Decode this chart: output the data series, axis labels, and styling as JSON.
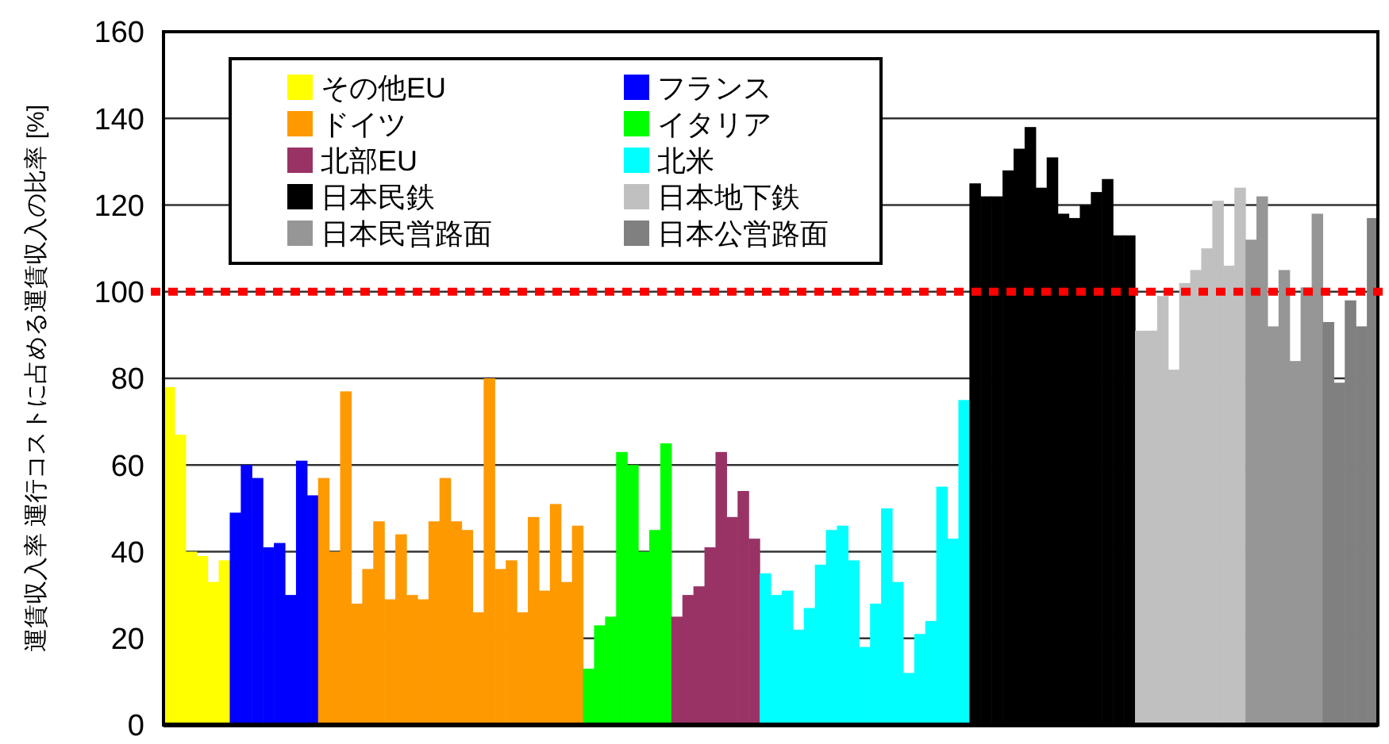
{
  "chart_data": {
    "type": "bar",
    "ylabel": "運賃収入率 運行コストに占める運賃収入の比率 [%]",
    "ylim": [
      0,
      160
    ],
    "yticks": [
      0,
      20,
      40,
      60,
      80,
      100,
      120,
      140,
      160
    ],
    "grid": "y",
    "legend": "top left",
    "tick_labels": "y",
    "categories": [
      null,
      null,
      null,
      null,
      null,
      null,
      null,
      null,
      null,
      null,
      null,
      null,
      null,
      null,
      null,
      null,
      null,
      null,
      null,
      null,
      null,
      null,
      null,
      null,
      null,
      null,
      null,
      null,
      null,
      null,
      null,
      null,
      null,
      null,
      null,
      null,
      null,
      null,
      null,
      null,
      null,
      null,
      null,
      null,
      null,
      null,
      null,
      null,
      null,
      null,
      null,
      null,
      null,
      null,
      null,
      null,
      null,
      null,
      null,
      null,
      null,
      null,
      null,
      null,
      null,
      null,
      null,
      null,
      null,
      null,
      null,
      null,
      null,
      null,
      null,
      null,
      null,
      null,
      null,
      null,
      null,
      null,
      null,
      null,
      null,
      null,
      null,
      null,
      null,
      null,
      null,
      null,
      null,
      null,
      null,
      null,
      null,
      null,
      null,
      null,
      null,
      null,
      null,
      null,
      null,
      null,
      null,
      null,
      null,
      null
    ],
    "ref_lines": [
      {
        "axis": "y",
        "value": 100,
        "color": "#ff0000",
        "line_style": "dotted"
      }
    ],
    "series": [
      {
        "name": "その他EU",
        "color": "#ffff00",
        "values": [
          78,
          67,
          40,
          39,
          33,
          38,
          null,
          null,
          null,
          null,
          null,
          null,
          null,
          null,
          null,
          null,
          null,
          null,
          null,
          null,
          null,
          null,
          null,
          null,
          null,
          null,
          null,
          null,
          null,
          null,
          null,
          null,
          null,
          null,
          null,
          null,
          null,
          null,
          null,
          null,
          null,
          null,
          null,
          null,
          null,
          null,
          null,
          null,
          null,
          null,
          null,
          null,
          null,
          null,
          null,
          null,
          null,
          null,
          null,
          null,
          null,
          null,
          null,
          null,
          null,
          null,
          null,
          null,
          null,
          null,
          null,
          null,
          null,
          null,
          null,
          null,
          null,
          null,
          null,
          null,
          null,
          null,
          null,
          null,
          null,
          null,
          null,
          null,
          null,
          null,
          null,
          null,
          null,
          null,
          null,
          null,
          null,
          null,
          null,
          null,
          null,
          null,
          null,
          null,
          null,
          null,
          null,
          null,
          null,
          null
        ]
      },
      {
        "name": "フランス",
        "color": "#0000ff",
        "values": [
          null,
          null,
          null,
          null,
          null,
          null,
          49,
          60,
          57,
          41,
          42,
          30,
          61,
          53,
          null,
          null,
          null,
          null,
          null,
          null,
          null,
          null,
          null,
          null,
          null,
          null,
          null,
          null,
          null,
          null,
          null,
          null,
          null,
          null,
          null,
          null,
          null,
          null,
          null,
          null,
          null,
          null,
          null,
          null,
          null,
          null,
          null,
          null,
          null,
          null,
          null,
          null,
          null,
          null,
          null,
          null,
          null,
          null,
          null,
          null,
          null,
          null,
          null,
          null,
          null,
          null,
          null,
          null,
          null,
          null,
          null,
          null,
          null,
          null,
          null,
          null,
          null,
          null,
          null,
          null,
          null,
          null,
          null,
          null,
          null,
          null,
          null,
          null,
          null,
          null,
          null,
          null,
          null,
          null,
          null,
          null,
          null,
          null,
          null,
          null,
          null,
          null,
          null,
          null,
          null,
          null,
          null,
          null,
          null,
          null
        ]
      },
      {
        "name": "ドイツ",
        "color": "#ff9900",
        "values": [
          null,
          null,
          null,
          null,
          null,
          null,
          null,
          null,
          null,
          null,
          null,
          null,
          null,
          null,
          57,
          40,
          77,
          28,
          36,
          47,
          29,
          44,
          30,
          29,
          47,
          57,
          47,
          45,
          26,
          80,
          36,
          38,
          26,
          48,
          31,
          51,
          33,
          46,
          null,
          null,
          null,
          null,
          null,
          null,
          null,
          null,
          null,
          null,
          null,
          null,
          null,
          null,
          null,
          null,
          null,
          null,
          null,
          null,
          null,
          null,
          null,
          null,
          null,
          null,
          null,
          null,
          null,
          null,
          null,
          null,
          null,
          null,
          null,
          null,
          null,
          null,
          null,
          null,
          null,
          null,
          null,
          null,
          null,
          null,
          null,
          null,
          null,
          null,
          null,
          null,
          null,
          null,
          null,
          null,
          null,
          null,
          null,
          null,
          null,
          null,
          null,
          null,
          null,
          null,
          null,
          null,
          null,
          null,
          null,
          null
        ]
      },
      {
        "name": "イタリア",
        "color": "#00ff00",
        "values": [
          null,
          null,
          null,
          null,
          null,
          null,
          null,
          null,
          null,
          null,
          null,
          null,
          null,
          null,
          null,
          null,
          null,
          null,
          null,
          null,
          null,
          null,
          null,
          null,
          null,
          null,
          null,
          null,
          null,
          null,
          null,
          null,
          null,
          null,
          null,
          null,
          null,
          null,
          13,
          23,
          25,
          63,
          60,
          40,
          45,
          65,
          null,
          null,
          null,
          null,
          null,
          null,
          null,
          null,
          null,
          null,
          null,
          null,
          null,
          null,
          null,
          null,
          null,
          null,
          null,
          null,
          null,
          null,
          null,
          null,
          null,
          null,
          null,
          null,
          null,
          null,
          null,
          null,
          null,
          null,
          null,
          null,
          null,
          null,
          null,
          null,
          null,
          null,
          null,
          null,
          null,
          null,
          null,
          null,
          null,
          null,
          null,
          null,
          null,
          null,
          null,
          null,
          null,
          null,
          null,
          null,
          null,
          null,
          null,
          null
        ]
      },
      {
        "name": "北部EU",
        "color": "#993366",
        "values": [
          null,
          null,
          null,
          null,
          null,
          null,
          null,
          null,
          null,
          null,
          null,
          null,
          null,
          null,
          null,
          null,
          null,
          null,
          null,
          null,
          null,
          null,
          null,
          null,
          null,
          null,
          null,
          null,
          null,
          null,
          null,
          null,
          null,
          null,
          null,
          null,
          null,
          null,
          null,
          null,
          null,
          null,
          null,
          null,
          null,
          null,
          25,
          30,
          32,
          41,
          63,
          48,
          54,
          43,
          null,
          null,
          null,
          null,
          null,
          null,
          null,
          null,
          null,
          null,
          null,
          null,
          null,
          null,
          null,
          null,
          null,
          null,
          null,
          null,
          null,
          null,
          null,
          null,
          null,
          null,
          null,
          null,
          null,
          null,
          null,
          null,
          null,
          null,
          null,
          null,
          null,
          null,
          null,
          null,
          null,
          null,
          null,
          null,
          null,
          null,
          null,
          null,
          null,
          null,
          null,
          null,
          null,
          null,
          null,
          null
        ]
      },
      {
        "name": "北米",
        "color": "#00ffff",
        "values": [
          null,
          null,
          null,
          null,
          null,
          null,
          null,
          null,
          null,
          null,
          null,
          null,
          null,
          null,
          null,
          null,
          null,
          null,
          null,
          null,
          null,
          null,
          null,
          null,
          null,
          null,
          null,
          null,
          null,
          null,
          null,
          null,
          null,
          null,
          null,
          null,
          null,
          null,
          null,
          null,
          null,
          null,
          null,
          null,
          null,
          null,
          null,
          null,
          null,
          null,
          null,
          null,
          null,
          null,
          35,
          30,
          31,
          22,
          27,
          37,
          45,
          46,
          38,
          18,
          28,
          50,
          33,
          12,
          21,
          24,
          55,
          43,
          75,
          null,
          null,
          null,
          null,
          null,
          null,
          null,
          null,
          null,
          null,
          null,
          null,
          null,
          null,
          null,
          null,
          null,
          null,
          null,
          null,
          null,
          null,
          null,
          null,
          null,
          null,
          null,
          null,
          null,
          null,
          null,
          null,
          null,
          null,
          null,
          null,
          null
        ]
      },
      {
        "name": "日本民鉄",
        "color": "#000000",
        "values": [
          null,
          null,
          null,
          null,
          null,
          null,
          null,
          null,
          null,
          null,
          null,
          null,
          null,
          null,
          null,
          null,
          null,
          null,
          null,
          null,
          null,
          null,
          null,
          null,
          null,
          null,
          null,
          null,
          null,
          null,
          null,
          null,
          null,
          null,
          null,
          null,
          null,
          null,
          null,
          null,
          null,
          null,
          null,
          null,
          null,
          null,
          null,
          null,
          null,
          null,
          null,
          null,
          null,
          null,
          null,
          null,
          null,
          null,
          null,
          null,
          null,
          null,
          null,
          null,
          null,
          null,
          null,
          null,
          null,
          null,
          null,
          null,
          null,
          125,
          122,
          122,
          128,
          133,
          138,
          124,
          131,
          118,
          117,
          120,
          123,
          126,
          113,
          113,
          null,
          null,
          null,
          null,
          null,
          null,
          null,
          null,
          null,
          null,
          null,
          null,
          null,
          null,
          null,
          null,
          null,
          null,
          null,
          null,
          null,
          null
        ]
      },
      {
        "name": "日本地下鉄",
        "color": "#c0c0c0",
        "values": [
          null,
          null,
          null,
          null,
          null,
          null,
          null,
          null,
          null,
          null,
          null,
          null,
          null,
          null,
          null,
          null,
          null,
          null,
          null,
          null,
          null,
          null,
          null,
          null,
          null,
          null,
          null,
          null,
          null,
          null,
          null,
          null,
          null,
          null,
          null,
          null,
          null,
          null,
          null,
          null,
          null,
          null,
          null,
          null,
          null,
          null,
          null,
          null,
          null,
          null,
          null,
          null,
          null,
          null,
          null,
          null,
          null,
          null,
          null,
          null,
          null,
          null,
          null,
          null,
          null,
          null,
          null,
          null,
          null,
          null,
          null,
          null,
          null,
          null,
          null,
          null,
          null,
          null,
          null,
          null,
          null,
          null,
          null,
          null,
          null,
          null,
          null,
          null,
          91,
          91,
          99,
          82,
          102,
          105,
          110,
          121,
          106,
          124,
          null,
          null,
          null,
          null,
          null,
          null,
          null,
          null,
          null,
          null,
          null,
          null
        ]
      },
      {
        "name": "日本民営路面",
        "color": "#969696",
        "values": [
          null,
          null,
          null,
          null,
          null,
          null,
          null,
          null,
          null,
          null,
          null,
          null,
          null,
          null,
          null,
          null,
          null,
          null,
          null,
          null,
          null,
          null,
          null,
          null,
          null,
          null,
          null,
          null,
          null,
          null,
          null,
          null,
          null,
          null,
          null,
          null,
          null,
          null,
          null,
          null,
          null,
          null,
          null,
          null,
          null,
          null,
          null,
          null,
          null,
          null,
          null,
          null,
          null,
          null,
          null,
          null,
          null,
          null,
          null,
          null,
          null,
          null,
          null,
          null,
          null,
          null,
          null,
          null,
          null,
          null,
          null,
          null,
          null,
          null,
          null,
          null,
          null,
          null,
          null,
          null,
          null,
          null,
          null,
          null,
          null,
          null,
          null,
          null,
          null,
          null,
          null,
          null,
          null,
          null,
          null,
          null,
          null,
          null,
          112,
          122,
          92,
          105,
          84,
          101,
          118,
          null,
          null,
          null,
          null,
          null
        ]
      },
      {
        "name": "日本公営路面",
        "color": "#808080",
        "values": [
          null,
          null,
          null,
          null,
          null,
          null,
          null,
          null,
          null,
          null,
          null,
          null,
          null,
          null,
          null,
          null,
          null,
          null,
          null,
          null,
          null,
          null,
          null,
          null,
          null,
          null,
          null,
          null,
          null,
          null,
          null,
          null,
          null,
          null,
          null,
          null,
          null,
          null,
          null,
          null,
          null,
          null,
          null,
          null,
          null,
          null,
          null,
          null,
          null,
          null,
          null,
          null,
          null,
          null,
          null,
          null,
          null,
          null,
          null,
          null,
          null,
          null,
          null,
          null,
          null,
          null,
          null,
          null,
          null,
          null,
          null,
          null,
          null,
          null,
          null,
          null,
          null,
          null,
          null,
          null,
          null,
          null,
          null,
          null,
          null,
          null,
          null,
          null,
          null,
          null,
          null,
          null,
          null,
          null,
          null,
          null,
          null,
          null,
          null,
          null,
          null,
          null,
          null,
          null,
          null,
          93,
          79,
          98,
          92,
          117
        ]
      }
    ]
  }
}
